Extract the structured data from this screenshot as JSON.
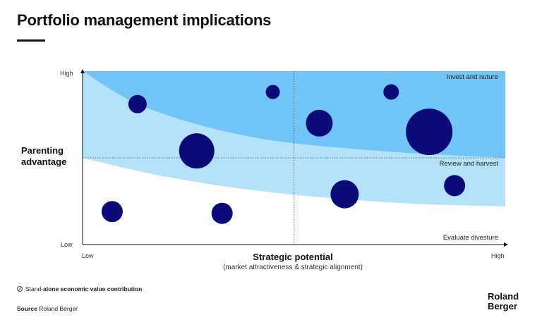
{
  "header": {
    "title": "Portfolio management implications"
  },
  "chart_data": {
    "type": "scatter",
    "subtype": "bubble",
    "title": "Portfolio management implications",
    "xlabel": "Strategic potential",
    "xsublabel": "(market attractiveness & strategic alignment)",
    "ylabel": "Parenting advantage",
    "x_ticks": {
      "low": "Low",
      "high": "High"
    },
    "y_ticks": {
      "low": "Low",
      "high": "High"
    },
    "xlim": [
      0,
      100
    ],
    "ylim": [
      0,
      100
    ],
    "midline_x": 50,
    "midline_y": 50,
    "zones": [
      {
        "label": "Invest and nuture",
        "color": "#70c4f7"
      },
      {
        "label": "Review and harvest",
        "color": "#b4e2fb"
      },
      {
        "label": "Evaluate divesture",
        "color": "#ffffff"
      }
    ],
    "zone_boundaries": {
      "upper_curve": [
        [
          0,
          100
        ],
        [
          15,
          79
        ],
        [
          40,
          62
        ],
        [
          70,
          54
        ],
        [
          100,
          50
        ]
      ],
      "lower_curve": [
        [
          0,
          50
        ],
        [
          20,
          39
        ],
        [
          45,
          30
        ],
        [
          75,
          24
        ],
        [
          100,
          22
        ]
      ]
    },
    "bubble_color": "#0a0a78",
    "points": [
      {
        "x": 13,
        "y": 81,
        "size": 13
      },
      {
        "x": 27,
        "y": 54,
        "size": 25
      },
      {
        "x": 7,
        "y": 19,
        "size": 15
      },
      {
        "x": 33,
        "y": 18,
        "size": 15
      },
      {
        "x": 45,
        "y": 88,
        "size": 10
      },
      {
        "x": 56,
        "y": 70,
        "size": 19
      },
      {
        "x": 62,
        "y": 29,
        "size": 20
      },
      {
        "x": 73,
        "y": 88,
        "size": 11
      },
      {
        "x": 82,
        "y": 65,
        "size": 33
      },
      {
        "x": 88,
        "y": 34,
        "size": 15
      }
    ]
  },
  "legend": {
    "prefix": "Stand-",
    "bold": "alone economic value contribution"
  },
  "footer": {
    "source_label": "Source",
    "source_value": "Roland Berger",
    "logo_line1": "Roland",
    "logo_line2": "Berger"
  }
}
